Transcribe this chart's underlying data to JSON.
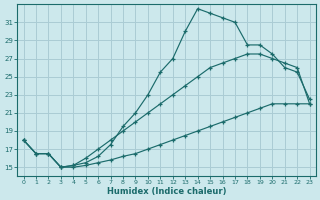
{
  "xlabel": "Humidex (Indice chaleur)",
  "background_color": "#cce8ec",
  "grid_color": "#aaccd4",
  "line_color": "#1b6b6b",
  "xlim": [
    -0.5,
    23.5
  ],
  "ylim": [
    14.0,
    33.0
  ],
  "xticks": [
    0,
    1,
    2,
    3,
    4,
    5,
    6,
    7,
    8,
    9,
    10,
    11,
    12,
    13,
    14,
    15,
    16,
    17,
    18,
    19,
    20,
    21,
    22,
    23
  ],
  "yticks": [
    15,
    17,
    19,
    21,
    23,
    25,
    27,
    29,
    31
  ],
  "line_top_x": [
    0,
    1,
    2,
    3,
    4,
    5,
    6,
    7,
    8,
    9,
    10,
    11,
    12,
    13,
    14,
    15,
    16,
    17,
    18,
    19,
    20,
    21,
    22,
    23
  ],
  "line_top_y": [
    18.0,
    16.5,
    16.5,
    15.0,
    15.2,
    15.5,
    16.2,
    17.5,
    19.5,
    21.0,
    23.0,
    25.5,
    27.0,
    30.0,
    32.5,
    32.0,
    31.5,
    31.0,
    28.5,
    28.5,
    27.5,
    26.0,
    25.5,
    22.5
  ],
  "line_mid_x": [
    0,
    1,
    2,
    3,
    4,
    5,
    6,
    7,
    8,
    9,
    10,
    11,
    12,
    13,
    14,
    15,
    16,
    17,
    18,
    19,
    20,
    21,
    22,
    23
  ],
  "line_mid_y": [
    18.0,
    16.5,
    16.5,
    15.0,
    15.2,
    16.0,
    17.0,
    18.0,
    19.0,
    20.0,
    21.0,
    22.0,
    23.0,
    24.0,
    25.0,
    26.0,
    26.5,
    27.0,
    27.5,
    27.5,
    27.0,
    26.5,
    26.0,
    22.0
  ],
  "line_bot_x": [
    0,
    1,
    2,
    3,
    4,
    5,
    6,
    7,
    8,
    9,
    10,
    11,
    12,
    13,
    14,
    15,
    16,
    17,
    18,
    19,
    20,
    21,
    22,
    23
  ],
  "line_bot_y": [
    18.0,
    16.5,
    16.5,
    15.0,
    15.0,
    15.2,
    15.5,
    15.8,
    16.2,
    16.5,
    17.0,
    17.5,
    18.0,
    18.5,
    19.0,
    19.5,
    20.0,
    20.5,
    21.0,
    21.5,
    22.0,
    22.0,
    22.0,
    22.0
  ]
}
